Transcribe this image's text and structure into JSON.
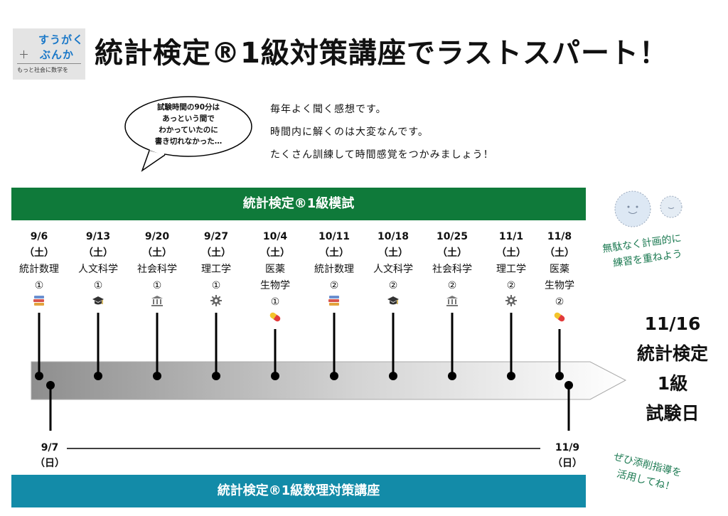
{
  "logo": {
    "line1": "すうがく",
    "line2": "ぶんか",
    "plus": "＋",
    "tagline": "もっと社会に数学を"
  },
  "title": "統計検定®1級対策講座でラストスパート！",
  "bubble": [
    "試験時間の90分は",
    "あっという間で",
    "わかっていたのに",
    "書き切れなかった…"
  ],
  "intro": [
    "毎年よく聞く感想です。",
    "時間内に解くのは大変なんです。",
    "たくさん訓練して時間感覚をつかみましょう！"
  ],
  "mock_bar": "統計検定®1級模試",
  "course_bar": "統計検定®1級数理対策講座",
  "events": [
    {
      "date": "9/6",
      "weekday": "（土）",
      "subject": [
        "統計数理"
      ],
      "number": "①",
      "icon": "books-icon"
    },
    {
      "date": "9/13",
      "weekday": "（土）",
      "subject": [
        "人文科学"
      ],
      "number": "①",
      "icon": "graduation-cap-icon"
    },
    {
      "date": "9/20",
      "weekday": "（土）",
      "subject": [
        "社会科学"
      ],
      "number": "①",
      "icon": "bank-icon"
    },
    {
      "date": "9/27",
      "weekday": "（土）",
      "subject": [
        "理工学"
      ],
      "number": "①",
      "icon": "gear-icon"
    },
    {
      "date": "10/4",
      "weekday": "（土）",
      "subject": [
        "医薬",
        "生物学"
      ],
      "number": "①",
      "icon": "pill-icon"
    },
    {
      "date": "10/11",
      "weekday": "（土）",
      "subject": [
        "統計数理"
      ],
      "number": "②",
      "icon": "books-icon"
    },
    {
      "date": "10/18",
      "weekday": "（土）",
      "subject": [
        "人文科学"
      ],
      "number": "②",
      "icon": "graduation-cap-icon"
    },
    {
      "date": "10/25",
      "weekday": "（土）",
      "subject": [
        "社会科学"
      ],
      "number": "②",
      "icon": "bank-icon"
    },
    {
      "date": "11/1",
      "weekday": "（土）",
      "subject": [
        "理工学"
      ],
      "number": "②",
      "icon": "gear-icon"
    },
    {
      "date": "11/8",
      "weekday": "（土）",
      "subject": [
        "医薬",
        "生物学"
      ],
      "number": "②",
      "icon": "pill-icon"
    }
  ],
  "course_dates": [
    {
      "date": "9/7",
      "weekday": "（日）"
    },
    {
      "date": "11/9",
      "weekday": "（日）"
    }
  ],
  "exam": [
    "11/16",
    "統計検定",
    "1級",
    "試験日"
  ],
  "memo_top": [
    "無駄なく計画的に",
    "練習を重ねよう"
  ],
  "memo_bottom": [
    "ぜひ添削指導を",
    "活用してね！"
  ],
  "colors": {
    "mock_bar": "#0f7a3a",
    "course_bar": "#138ba8",
    "memo": "#1c7a52",
    "logo_text": "#1a78c8"
  }
}
